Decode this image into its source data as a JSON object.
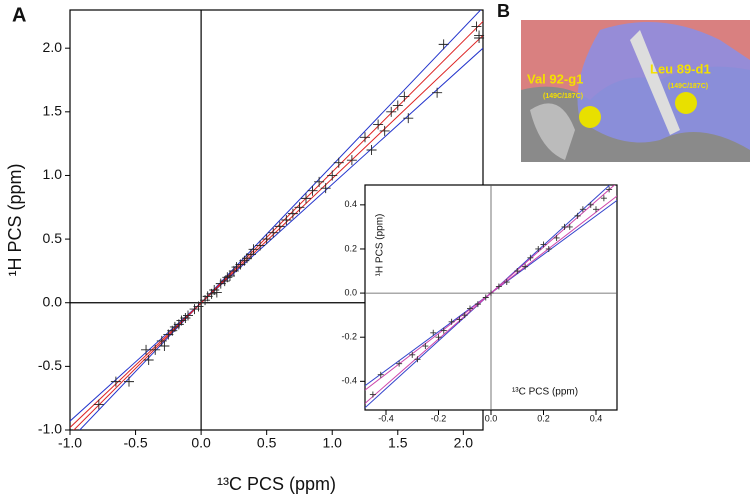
{
  "panels": {
    "a_label": "A",
    "b_label": "B",
    "image_labels": [
      "Val 92-g1",
      "(149C/187C)",
      "Leu 89-d1",
      "(149C/187C)"
    ]
  },
  "chart_data": [
    {
      "type": "scatter",
      "x_label": "¹³C PCS (ppm)",
      "y_label": "¹H PCS (ppm)",
      "marker": "+",
      "color": "#222222",
      "x": [
        -0.78,
        -0.65,
        -0.55,
        -0.42,
        -0.4,
        -0.35,
        -0.3,
        -0.28,
        -0.25,
        -0.22,
        -0.2,
        -0.17,
        -0.15,
        -0.12,
        -0.1,
        -0.05,
        -0.02,
        0,
        0.03,
        0.05,
        0.08,
        0.1,
        0.12,
        0.15,
        0.18,
        0.2,
        0.22,
        0.25,
        0.27,
        0.3,
        0.33,
        0.35,
        0.38,
        0.4,
        0.45,
        0.5,
        0.55,
        0.6,
        0.65,
        0.7,
        0.75,
        0.8,
        0.85,
        0.9,
        0.95,
        1.0,
        1.05,
        1.15,
        1.25,
        1.3,
        1.35,
        1.4,
        1.45,
        1.5,
        1.55,
        1.58,
        1.8,
        1.85,
        2.1,
        2.12,
        2.12
      ],
      "values": [
        -0.8,
        -0.62,
        -0.62,
        -0.37,
        -0.45,
        -0.37,
        -0.3,
        -0.34,
        -0.25,
        -0.22,
        -0.19,
        -0.17,
        -0.14,
        -0.12,
        -0.1,
        -0.05,
        -0.03,
        0,
        0.02,
        0.05,
        0.07,
        0.1,
        0.08,
        0.15,
        0.17,
        0.2,
        0.21,
        0.25,
        0.28,
        0.3,
        0.33,
        0.35,
        0.38,
        0.42,
        0.45,
        0.5,
        0.55,
        0.6,
        0.65,
        0.7,
        0.75,
        0.82,
        0.88,
        0.95,
        0.9,
        1.0,
        1.1,
        1.12,
        1.3,
        1.2,
        1.4,
        1.35,
        1.5,
        1.55,
        1.62,
        1.45,
        1.65,
        2.03,
        2.17,
        2.08,
        2.1
      ],
      "lines": [
        {
          "color": "#2233cc",
          "x": [
            -1.0,
            2.15
          ],
          "values": [
            -1.08,
            2.32
          ]
        },
        {
          "color": "#2233cc",
          "x": [
            -1.0,
            2.15
          ],
          "values": [
            -0.93,
            2.0
          ]
        },
        {
          "color": "#dd2222",
          "x": [
            -1.0,
            2.15
          ],
          "values": [
            -1.03,
            2.21
          ]
        },
        {
          "color": "#dd2222",
          "x": [
            -1.0,
            2.15
          ],
          "values": [
            -0.98,
            2.1
          ]
        }
      ],
      "xlim": [
        -1.0,
        2.15
      ],
      "ylim": [
        -1.0,
        2.3
      ],
      "xticks": [
        {
          "value": -1,
          "label": "-1.0"
        },
        -0.5,
        {
          "value": 0,
          "label": "0.0"
        },
        0.5,
        {
          "value": 1,
          "label": "1.0"
        },
        1.5,
        {
          "value": 2,
          "label": "2.0"
        }
      ],
      "yticks": [
        {
          "value": -1,
          "label": "-1.0"
        },
        -0.5,
        {
          "value": 0,
          "label": "0.0"
        },
        0.5,
        {
          "value": 1,
          "label": "1.0"
        },
        1.5,
        {
          "value": 2,
          "label": "2.0"
        }
      ],
      "zero_lines": true
    },
    {
      "type": "scatter",
      "x_label": "¹³C PCS (ppm)",
      "y_label": "¹H PCS (ppm)",
      "marker": "+",
      "color": "#333333",
      "x": [
        -0.45,
        -0.42,
        -0.35,
        -0.3,
        -0.28,
        -0.25,
        -0.22,
        -0.2,
        -0.18,
        -0.15,
        -0.12,
        -0.1,
        -0.08,
        -0.05,
        -0.02,
        0,
        0.03,
        0.06,
        0.1,
        0.13,
        0.15,
        0.18,
        0.2,
        0.22,
        0.25,
        0.28,
        0.3,
        0.33,
        0.35,
        0.38,
        0.4,
        0.43,
        0.45
      ],
      "values": [
        -0.46,
        -0.37,
        -0.32,
        -0.28,
        -0.3,
        -0.24,
        -0.18,
        -0.2,
        -0.17,
        -0.13,
        -0.12,
        -0.1,
        -0.07,
        -0.05,
        -0.02,
        0,
        0.03,
        0.05,
        0.1,
        0.12,
        0.16,
        0.2,
        0.22,
        0.2,
        0.25,
        0.3,
        0.3,
        0.35,
        0.38,
        0.4,
        0.38,
        0.43,
        0.47
      ],
      "lines": [
        {
          "color": "#3344cc",
          "x": [
            -0.48,
            0.48
          ],
          "values": [
            -0.52,
            0.52
          ]
        },
        {
          "color": "#3344cc",
          "x": [
            -0.48,
            0.48
          ],
          "values": [
            -0.42,
            0.42
          ]
        },
        {
          "color": "#cc44aa",
          "x": [
            -0.48,
            0.48
          ],
          "values": [
            -0.5,
            0.5
          ]
        },
        {
          "color": "#cc44aa",
          "x": [
            -0.48,
            0.48
          ],
          "values": [
            -0.44,
            0.44
          ]
        }
      ],
      "xlim": [
        -0.48,
        0.48
      ],
      "ylim": [
        -0.53,
        0.49
      ],
      "xticks": [
        -0.4,
        -0.2,
        {
          "value": 0,
          "label": "0.0"
        },
        0.2,
        0.4
      ],
      "yticks": [
        -0.4,
        -0.2,
        {
          "value": 0,
          "label": "0.0"
        },
        0.2,
        0.4
      ],
      "zero_lines": true
    }
  ]
}
